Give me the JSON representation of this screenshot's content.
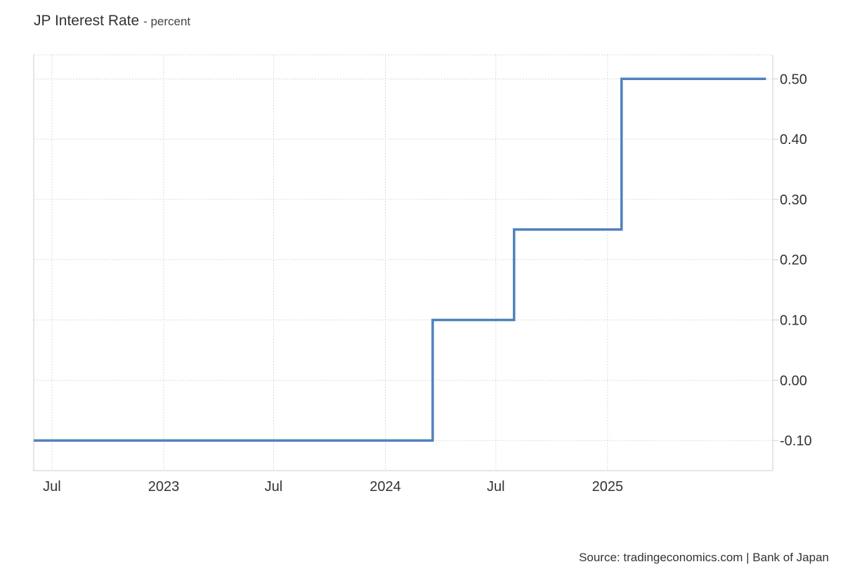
{
  "chart_data": {
    "type": "line",
    "title": "JP Interest Rate",
    "subtitle": "percent",
    "source": "Source: tradingeconomics.com | Bank of Japan",
    "line_style": "step",
    "colors": {
      "series": "#4f81bd",
      "grid": "#d9d9d9",
      "axis": "#cccccc"
    },
    "y_axis": {
      "position": "right",
      "ylim": [
        -0.15,
        0.54
      ],
      "ticks": [
        "0.50",
        "0.40",
        "0.30",
        "0.20",
        "0.10",
        "0.00",
        "-0.10"
      ]
    },
    "x_axis": {
      "xlim": [
        "2022-06-01",
        "2025-09-30"
      ],
      "ticks": [
        {
          "date": "2022-07-01",
          "label": "Jul"
        },
        {
          "date": "2023-01-01",
          "label": "2023"
        },
        {
          "date": "2023-07-01",
          "label": "Jul"
        },
        {
          "date": "2024-01-01",
          "label": "2024"
        },
        {
          "date": "2024-07-01",
          "label": "Jul"
        },
        {
          "date": "2025-01-01",
          "label": "2025"
        }
      ]
    },
    "grid": true,
    "series": [
      {
        "points": [
          {
            "x": "2022-06-01",
            "y": -0.1
          },
          {
            "x": "2024-03-19",
            "y": 0.1
          },
          {
            "x": "2024-07-31",
            "y": 0.25
          },
          {
            "x": "2025-01-24",
            "y": 0.5
          },
          {
            "x": "2025-09-19",
            "y": 0.5
          }
        ]
      }
    ]
  }
}
